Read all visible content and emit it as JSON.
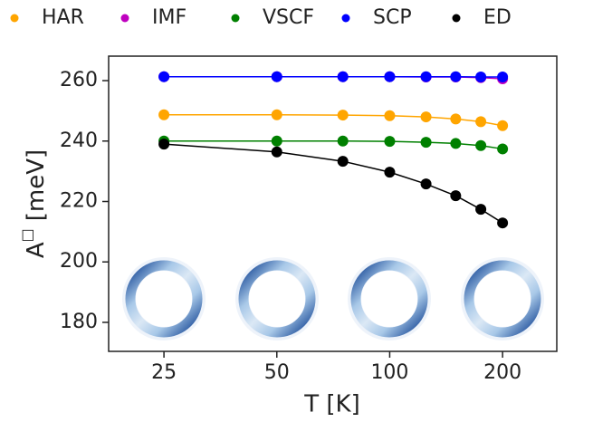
{
  "chart_data": {
    "type": "line",
    "x_label": "T [K]",
    "y_label": {
      "base": "A",
      "sup": "□",
      "unit": "[meV]"
    },
    "x": [
      25,
      50,
      75,
      100,
      125,
      150,
      175,
      200
    ],
    "xscale": "log",
    "xlim": [
      17.8,
      279
    ],
    "xticks": [
      25,
      50,
      100,
      200
    ],
    "ylim": [
      170.4,
      268.1
    ],
    "yticks": [
      180,
      200,
      220,
      240,
      260
    ],
    "legend": "top",
    "series": [
      {
        "name": "HAR",
        "color": "#ffa500",
        "values": [
          248.7,
          248.7,
          248.6,
          248.4,
          248.0,
          247.3,
          246.4,
          245.1
        ]
      },
      {
        "name": "IMF",
        "color": "#bf00bf",
        "values": [
          261.3,
          261.3,
          261.3,
          261.3,
          261.2,
          261.2,
          261.0,
          260.6
        ]
      },
      {
        "name": "VSCF",
        "color": "#008000",
        "values": [
          240.0,
          240.0,
          240.0,
          239.9,
          239.6,
          239.2,
          238.5,
          237.4
        ]
      },
      {
        "name": "SCP",
        "color": "#0000ff",
        "values": [
          261.3,
          261.3,
          261.3,
          261.3,
          261.3,
          261.3,
          261.2,
          261.2
        ]
      },
      {
        "name": "ED",
        "color": "#000000",
        "values": [
          239.0,
          236.4,
          233.3,
          229.7,
          225.8,
          221.9,
          217.4,
          212.9
        ]
      }
    ]
  }
}
